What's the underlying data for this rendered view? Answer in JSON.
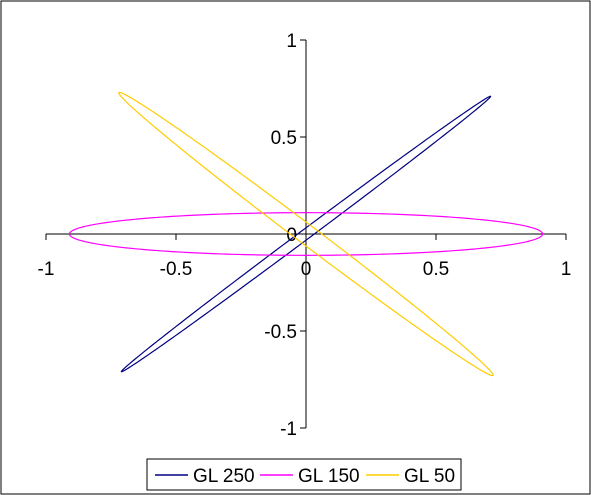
{
  "chart_data": {
    "type": "line",
    "title": "",
    "xlabel": "",
    "ylabel": "",
    "xlim": [
      -1,
      1
    ],
    "ylim": [
      -1,
      1
    ],
    "x_ticks": [
      "-1",
      "-0.5",
      "0",
      "0.5",
      "1"
    ],
    "y_ticks": [
      "1",
      "0.5",
      "0",
      "-0.5",
      "-1"
    ],
    "grid": false,
    "legend_position": "bottom",
    "series": [
      {
        "name": "GL 250",
        "color": "#000080",
        "shape": "narrow ellipse along y = x",
        "extreme_points": [
          [
            0.71,
            0.71
          ],
          [
            -0.71,
            -0.71
          ]
        ],
        "x_intercepts": [
          0.03,
          -0.03
        ],
        "y_intercepts": [
          0.03,
          -0.03
        ]
      },
      {
        "name": "GL 150",
        "color": "#ff00ff",
        "shape": "flat ellipse along x axis",
        "extreme_points": [
          [
            0.91,
            0.0
          ],
          [
            -0.91,
            0.0
          ]
        ],
        "x_intercepts": [
          0.91,
          -0.91
        ],
        "y_intercepts": [
          0.11,
          -0.11
        ]
      },
      {
        "name": "GL 50",
        "color": "#ffcc00",
        "shape": "narrow ellipse along y = -x",
        "extreme_points": [
          [
            -0.72,
            0.73
          ],
          [
            0.72,
            -0.73
          ]
        ],
        "x_intercepts": [
          0.06,
          -0.06
        ],
        "y_intercepts": [
          0.06,
          -0.06
        ]
      }
    ]
  }
}
